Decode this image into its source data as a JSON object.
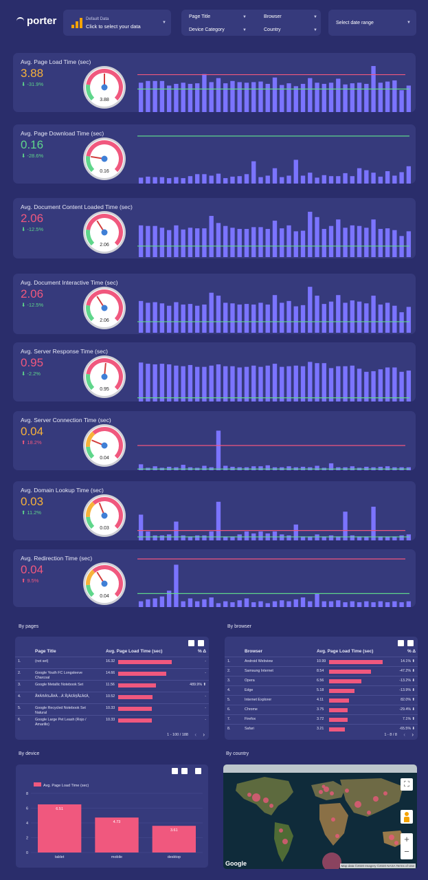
{
  "brand": {
    "name": "porter"
  },
  "data_source": {
    "label": "Default Data",
    "action": "Click to select your data"
  },
  "filters": {
    "page_title": "Page Title",
    "browser": "Browser",
    "device_category": "Device Category",
    "country": "Country"
  },
  "date_range": {
    "label": "Select date range"
  },
  "colors": {
    "good": "#5fd68b",
    "warn": "#f7b23b",
    "bad": "#f0587e",
    "bar": "#7b74ff",
    "target_high": "#f0587e",
    "target_low": "#5fd68b"
  },
  "metrics": [
    {
      "id": "page-load",
      "title": "Avg. Page Load Time (sec)",
      "value": "3.88",
      "change": "⬇ -31.9%",
      "value_color": "warn",
      "change_color": "good",
      "gauge_value": "3.88",
      "gauge_fraction": 0.5,
      "gauge_style": "red",
      "bars": [
        5.1,
        5.4,
        5.4,
        5.4,
        4.6,
        4.9,
        5.1,
        4.9,
        5.0,
        6.6,
        5.2,
        5.9,
        5.0,
        5.4,
        5.2,
        5.1,
        5.2,
        5.3,
        4.9,
        6.0,
        4.7,
        5.0,
        4.5,
        4.9,
        5.9,
        5.1,
        4.9,
        5.1,
        5.8,
        4.8,
        5.0,
        5.1,
        4.9,
        8.0,
        5.1,
        5.3,
        5.5,
        3.8,
        4.6
      ],
      "ymax": 8.6,
      "line_high": 6.5,
      "line_low": 4.0
    },
    {
      "id": "page-download",
      "title": "Avg. Page Download Time (sec)",
      "value": "0.16",
      "change": "⬇ -28.6%",
      "value_color": "good",
      "change_color": "good",
      "gauge_value": "0.16",
      "gauge_fraction": 0.2,
      "gauge_style": "red",
      "bars": [
        1.2,
        1.4,
        1.3,
        1.3,
        1.1,
        1.3,
        1.1,
        1.5,
        1.9,
        1.9,
        1.6,
        2.0,
        1.1,
        1.4,
        1.5,
        1.9,
        4.5,
        1.3,
        1.6,
        3.1,
        1.3,
        1.6,
        4.8,
        1.6,
        2.2,
        1.2,
        1.7,
        1.5,
        1.5,
        2.1,
        1.5,
        3.1,
        2.7,
        2.2,
        1.4,
        2.5,
        1.6,
        2.3,
        3.5
      ],
      "ymax": 10,
      "line_high": null,
      "line_low": 9.6
    },
    {
      "id": "doc-content",
      "title": "Avg. Document Content Loaded Time (sec)",
      "value": "2.06",
      "change": "⬇ -12.5%",
      "value_color": "bad",
      "change_color": "good",
      "gauge_value": "2.06",
      "gauge_fraction": 0.38,
      "gauge_style": "red",
      "bars": [
        5.6,
        5.5,
        5.5,
        5.2,
        4.8,
        5.6,
        4.9,
        5.2,
        5.1,
        5.1,
        7.2,
        6.0,
        5.5,
        5.2,
        5.0,
        5.0,
        5.3,
        5.3,
        5.0,
        6.4,
        5.1,
        5.6,
        4.6,
        4.7,
        7.9,
        7.0,
        5.0,
        5.5,
        6.6,
        5.2,
        5.6,
        5.5,
        5.2,
        6.6,
        5.0,
        5.1,
        4.8,
        3.8,
        4.6
      ],
      "ymax": 8.6,
      "line_high": null,
      "line_low": 2.1
    },
    {
      "id": "doc-interactive",
      "title": "Avg. Document Interactive Time (sec)",
      "value": "2.06",
      "change": "⬇ -12.5%",
      "value_color": "bad",
      "change_color": "good",
      "gauge_value": "2.06",
      "gauge_fraction": 0.38,
      "gauge_style": "red",
      "bars": [
        5.6,
        5.3,
        5.4,
        5.2,
        4.8,
        5.4,
        5.0,
        5.1,
        4.8,
        5.0,
        7.0,
        6.5,
        5.3,
        5.2,
        5.0,
        5.1,
        5.0,
        5.3,
        5.0,
        6.6,
        5.3,
        5.6,
        4.7,
        4.9,
        8.0,
        6.5,
        5.1,
        5.5,
        6.6,
        5.3,
        5.7,
        5.5,
        5.2,
        6.5,
        5.0,
        5.3,
        4.8,
        3.7,
        4.6
      ],
      "ymax": 8.6,
      "line_high": null,
      "line_low": 2.1
    },
    {
      "id": "server-response",
      "title": "Avg. Server Response Time (sec)",
      "value": "0.95",
      "change": "⬇ -2.2%",
      "value_color": "bad",
      "change_color": "good",
      "gauge_value": "0.95",
      "gauge_fraction": 0.52,
      "gauge_style": "red",
      "bars": [
        6.3,
        6.1,
        6.0,
        6.1,
        6.0,
        5.8,
        5.7,
        5.9,
        5.6,
        5.6,
        5.8,
        6.0,
        5.7,
        5.7,
        5.5,
        5.6,
        5.8,
        5.6,
        5.8,
        6.1,
        5.6,
        5.7,
        5.8,
        5.7,
        6.4,
        6.2,
        6.2,
        5.4,
        5.7,
        5.7,
        5.8,
        5.3,
        4.8,
        4.9,
        5.2,
        5.5,
        5.5,
        4.8,
        5.0
      ],
      "ymax": 8,
      "line_high": null,
      "line_low": 0.6
    },
    {
      "id": "server-connection",
      "title": "Avg. Server Connection Time (sec)",
      "value": "0.04",
      "change": "⬆ 18.2%",
      "value_color": "warn",
      "change_color": "bad",
      "gauge_value": "0.04",
      "gauge_fraction": 0.25,
      "gauge_style": "yellow",
      "bars": [
        0.6,
        0.25,
        0.4,
        0.25,
        0.35,
        0.3,
        0.55,
        0.3,
        0.25,
        0.45,
        0.3,
        0.5,
        0.45,
        0.35,
        0.3,
        0.3,
        0.4,
        0.4,
        0.5,
        0.3,
        0.3,
        0.4,
        0.3,
        0.35,
        0.3,
        0.45,
        0.25,
        0.7,
        0.3,
        0.3,
        0.4,
        0.25,
        0.35,
        0.3,
        0.35,
        0.4,
        0.3,
        0.3,
        0.3
      ],
      "spike": {
        "index": 11,
        "value": 4.0
      },
      "ymax": 5,
      "line_high": 2.5,
      "line_low": 0.12
    },
    {
      "id": "domain-lookup",
      "title": "Avg. Domain Lookup Time (sec)",
      "value": "0.03",
      "change": "⬆ 11.2%",
      "value_color": "warn",
      "change_color": "good",
      "gauge_value": "0.03",
      "gauge_fraction": 0.42,
      "gauge_style": "yellow",
      "bars": [
        2.6,
        0.9,
        0.5,
        0.5,
        0.6,
        1.9,
        0.5,
        0.4,
        0.5,
        0.5,
        0.9,
        3.9,
        0.4,
        0.4,
        0.6,
        0.9,
        0.7,
        0.9,
        0.7,
        0.9,
        0.6,
        0.5,
        1.6,
        0.4,
        0.4,
        0.6,
        0.4,
        0.5,
        0.4,
        2.9,
        0.5,
        0.4,
        0.4,
        3.4,
        0.4,
        0.4,
        0.4,
        0.5,
        0.6
      ],
      "ymax": 5,
      "line_high": 1.0,
      "line_low": 0.35
    },
    {
      "id": "redirection",
      "title": "Avg. Redirection Time (sec)",
      "value": "0.04",
      "change": "⬆ 9.5%",
      "value_color": "bad",
      "change_color": "bad",
      "gauge_value": "0.04",
      "gauge_fraction": 0.38,
      "gauge_style": "yellow",
      "bars": [
        0.6,
        0.8,
        0.9,
        1.1,
        1.7,
        4.4,
        0.6,
        0.9,
        0.6,
        0.8,
        1.0,
        0.4,
        0.6,
        0.5,
        0.7,
        0.9,
        0.5,
        0.6,
        0.4,
        0.6,
        0.7,
        0.6,
        0.8,
        1.0,
        0.6,
        1.4,
        0.6,
        0.6,
        0.7,
        0.5,
        0.6,
        0.5,
        0.6,
        0.5,
        0.6,
        0.5,
        0.6,
        0.5,
        0.6
      ],
      "ymax": 5,
      "line_high": 5.0,
      "line_low": 1.4
    }
  ],
  "by_pages": {
    "section_title": "By pages",
    "columns": [
      "Page Title",
      "Avg. Page Load Time (sec)",
      "% Δ"
    ],
    "rows": [
      {
        "n": "1.",
        "title": "(not set)",
        "value": "16.32",
        "ratio": 1.0,
        "delta": "-"
      },
      {
        "n": "2.",
        "title": "Google Youth FC Longsleeve Charcoal",
        "value": "14.66",
        "ratio": 0.9,
        "delta": "-"
      },
      {
        "n": "3.",
        "title": "Google Metallic Notebook Set",
        "value": "11.56",
        "ratio": 0.71,
        "delta": "489.9% ⬆"
      },
      {
        "n": "4.",
        "title": "Ã¥Â®Â‰Ã¥Â…Â¨Ã¦Â€Â§Ã£Â€Â‚",
        "value": "10.52",
        "ratio": 0.64,
        "delta": "-"
      },
      {
        "n": "5.",
        "title": "Google Recycled Notebook Set Natural",
        "value": "10.33",
        "ratio": 0.63,
        "delta": "-"
      },
      {
        "n": "6.",
        "title": "Google Large Pet Leash (Rojo / Amarillo)",
        "value": "10.33",
        "ratio": 0.63,
        "delta": "-"
      }
    ],
    "pagination": "1 - 100 / 188"
  },
  "by_browser": {
    "section_title": "By browser",
    "columns": [
      "Browser",
      "Avg. Page Load Time (sec)",
      "% Δ"
    ],
    "rows": [
      {
        "n": "1.",
        "title": "Android Webview",
        "value": "10.99",
        "ratio": 1.0,
        "delta": "14.1% ⬆"
      },
      {
        "n": "2.",
        "title": "Samsung Internet",
        "value": "8.54",
        "ratio": 0.78,
        "delta": "-47.2% ⬇"
      },
      {
        "n": "3.",
        "title": "Opera",
        "value": "6.56",
        "ratio": 0.6,
        "delta": "-13.2% ⬇"
      },
      {
        "n": "4.",
        "title": "Edge",
        "value": "5.18",
        "ratio": 0.47,
        "delta": "-13.9% ⬇"
      },
      {
        "n": "5.",
        "title": "Internet Explorer",
        "value": "4.11",
        "ratio": 0.37,
        "delta": "82.0% ⬆"
      },
      {
        "n": "6.",
        "title": "Chrome",
        "value": "3.75",
        "ratio": 0.34,
        "delta": "-29.4% ⬇"
      },
      {
        "n": "7.",
        "title": "Firefox",
        "value": "3.72",
        "ratio": 0.34,
        "delta": "7.1% ⬆"
      },
      {
        "n": "8.",
        "title": "Safari",
        "value": "3.21",
        "ratio": 0.29,
        "delta": "-65.5% ⬇"
      }
    ],
    "pagination": "1 - 8 / 8"
  },
  "by_device": {
    "section_title": "By device",
    "chart_data": {
      "type": "bar",
      "categories": [
        "tablet",
        "mobile",
        "desktop"
      ],
      "series": [
        {
          "name": "Avg. Page Load Time (sec)",
          "values": [
            6.51,
            4.73,
            3.61
          ]
        }
      ],
      "ylim": [
        0,
        8
      ],
      "yticks": [
        "0",
        "2",
        "4",
        "6",
        "8"
      ]
    }
  },
  "by_country": {
    "section_title": "By country",
    "google_label": "Google",
    "attribution": "Map data ©2020 Imagery ©2020 NASA   Terms of Use",
    "zoom_in": "+",
    "zoom_out": "−"
  }
}
